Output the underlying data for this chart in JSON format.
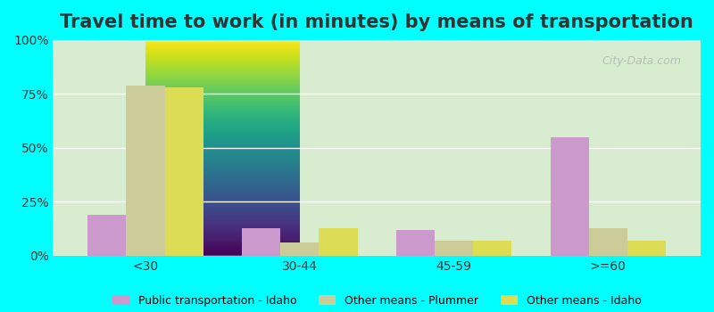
{
  "title": "Travel time to work (in minutes) by means of transportation",
  "categories": [
    "<30",
    "30-44",
    "45-59",
    ">=60"
  ],
  "series": {
    "Public transportation - Idaho": [
      19,
      13,
      12,
      55
    ],
    "Other means - Plummer": [
      79,
      6,
      7,
      13
    ],
    "Other means - Idaho": [
      78,
      13,
      7,
      7
    ]
  },
  "colors": {
    "Public transportation - Idaho": "#CC99CC",
    "Other means - Plummer": "#CCCC99",
    "Other means - Idaho": "#DDDD55"
  },
  "bar_width": 0.25,
  "ylim": [
    0,
    100
  ],
  "yticks": [
    0,
    25,
    50,
    75,
    100
  ],
  "ytick_labels": [
    "0%",
    "25%",
    "50%",
    "75%",
    "100%"
  ],
  "background_color": "#00FFFF",
  "plot_bg_start": "#E8F5E0",
  "plot_bg_end": "#F5F0F8",
  "grid_color": "#FFFFFF",
  "title_fontsize": 15,
  "tick_fontsize": 10,
  "legend_fontsize": 9
}
